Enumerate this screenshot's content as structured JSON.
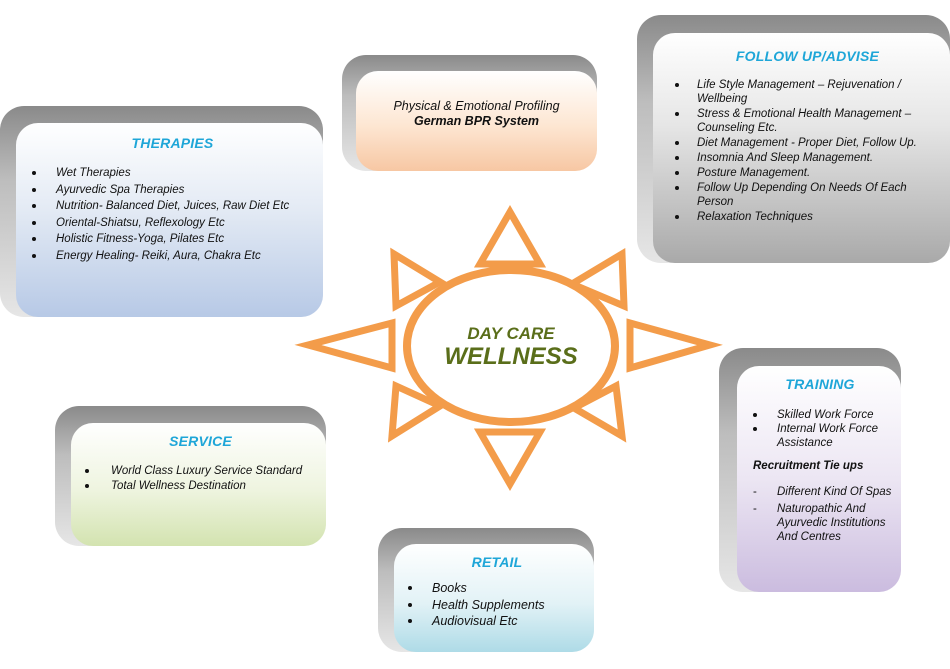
{
  "center": {
    "line1": "DAY CARE",
    "line2": "WELLNESS"
  },
  "profiling": {
    "line1": "Physical & Emotional Profiling",
    "line2": "German BPR System"
  },
  "therapies": {
    "title": "THERAPIES",
    "items": [
      "Wet Therapies",
      "Ayurvedic Spa Therapies",
      "Nutrition- Balanced Diet, Juices, Raw Diet Etc",
      "Oriental-Shiatsu, Reflexology Etc",
      "Holistic Fitness-Yoga, Pilates  Etc",
      "Energy Healing- Reiki, Aura, Chakra Etc"
    ]
  },
  "followup": {
    "title": "FOLLOW UP/ADVISE",
    "items": [
      "Life Style Management – Rejuvenation / Wellbeing",
      "Stress & Emotional Health Management – Counseling Etc.",
      "Diet Management - Proper Diet, Follow Up.",
      "Insomnia And Sleep Management.",
      "Posture Management.",
      "Follow Up Depending On Needs Of Each Person",
      "Relaxation Techniques"
    ]
  },
  "service": {
    "title": "SERVICE",
    "items": [
      "World Class Luxury Service Standard",
      "Total Wellness Destination"
    ]
  },
  "training": {
    "title": "TRAINING",
    "items": [
      "Skilled Work Force",
      "Internal Work Force Assistance"
    ],
    "subheading": "Recruitment Tie ups",
    "recruit_items": [
      "Different Kind Of Spas",
      "Naturopathic And Ayurvedic Institutions And Centres"
    ]
  },
  "retail": {
    "title": "RETAIL",
    "items": [
      "Books",
      "Health Supplements",
      "Audiovisual Etc"
    ]
  },
  "colors": {
    "sun_orange": "#f39c4a",
    "center_text": "#5a6e1a",
    "title_blue": "#1ea6d8"
  }
}
